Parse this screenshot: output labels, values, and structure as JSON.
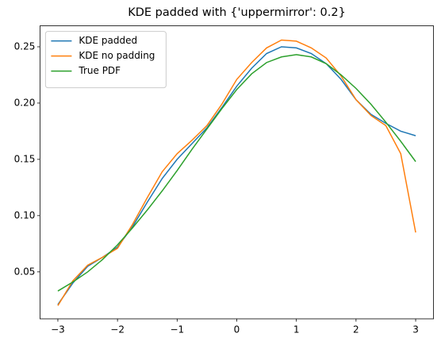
{
  "chart_data": {
    "type": "line",
    "title": "KDE padded with {'uppermirror': 0.2}",
    "x": [
      -3,
      -2.75,
      -2.5,
      -2.25,
      -2,
      -1.75,
      -1.5,
      -1.25,
      -1,
      -0.75,
      -0.5,
      -0.25,
      0,
      0.25,
      0.5,
      0.75,
      1,
      1.25,
      1.5,
      1.75,
      2,
      2.25,
      2.5,
      2.75,
      3
    ],
    "series": [
      {
        "name": "KDE padded",
        "color": "#1f77b4",
        "values": [
          0.021,
          0.04,
          0.055,
          0.063,
          0.072,
          0.09,
          0.112,
          0.133,
          0.15,
          0.164,
          0.178,
          0.196,
          0.215,
          0.231,
          0.244,
          0.25,
          0.249,
          0.244,
          0.235,
          0.221,
          0.203,
          0.19,
          0.182,
          0.175,
          0.171
        ]
      },
      {
        "name": "KDE no padding",
        "color": "#ff7f0e",
        "values": [
          0.02,
          0.042,
          0.056,
          0.063,
          0.071,
          0.092,
          0.116,
          0.139,
          0.155,
          0.167,
          0.18,
          0.199,
          0.221,
          0.236,
          0.249,
          0.256,
          0.255,
          0.249,
          0.24,
          0.224,
          0.203,
          0.189,
          0.18,
          0.155,
          0.085
        ]
      },
      {
        "name": "True PDF",
        "color": "#2ca02c",
        "values": [
          0.033,
          0.041,
          0.05,
          0.061,
          0.074,
          0.089,
          0.105,
          0.122,
          0.14,
          0.159,
          0.177,
          0.195,
          0.212,
          0.226,
          0.236,
          0.241,
          0.243,
          0.241,
          0.235,
          0.225,
          0.213,
          0.199,
          0.183,
          0.166,
          0.148
        ]
      }
    ],
    "xlim": [
      -3.3,
      3.3
    ],
    "ylim": [
      0.0083,
      0.2686
    ],
    "xticks": [
      {
        "value": -3,
        "label": "−3"
      },
      {
        "value": -2,
        "label": "−2"
      },
      {
        "value": -1,
        "label": "−1"
      },
      0,
      1,
      2,
      3
    ],
    "yticks": [
      0.05,
      {
        "value": 0.1,
        "label": "0.10"
      },
      0.15,
      {
        "value": 0.2,
        "label": "0.20"
      },
      0.25
    ],
    "legend": "upper left"
  }
}
